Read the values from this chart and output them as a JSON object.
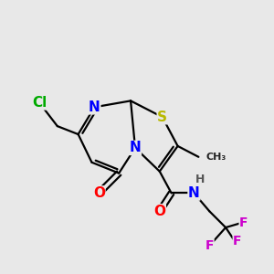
{
  "bg_color": "#e8e8e8",
  "atom_colors": {
    "O": "#ff0000",
    "N": "#0000ff",
    "S": "#b8b800",
    "Cl": "#00aa00",
    "F": "#cc00cc",
    "C": "#000000",
    "H": "#555555"
  },
  "lw": 1.6,
  "fontsize": 10
}
